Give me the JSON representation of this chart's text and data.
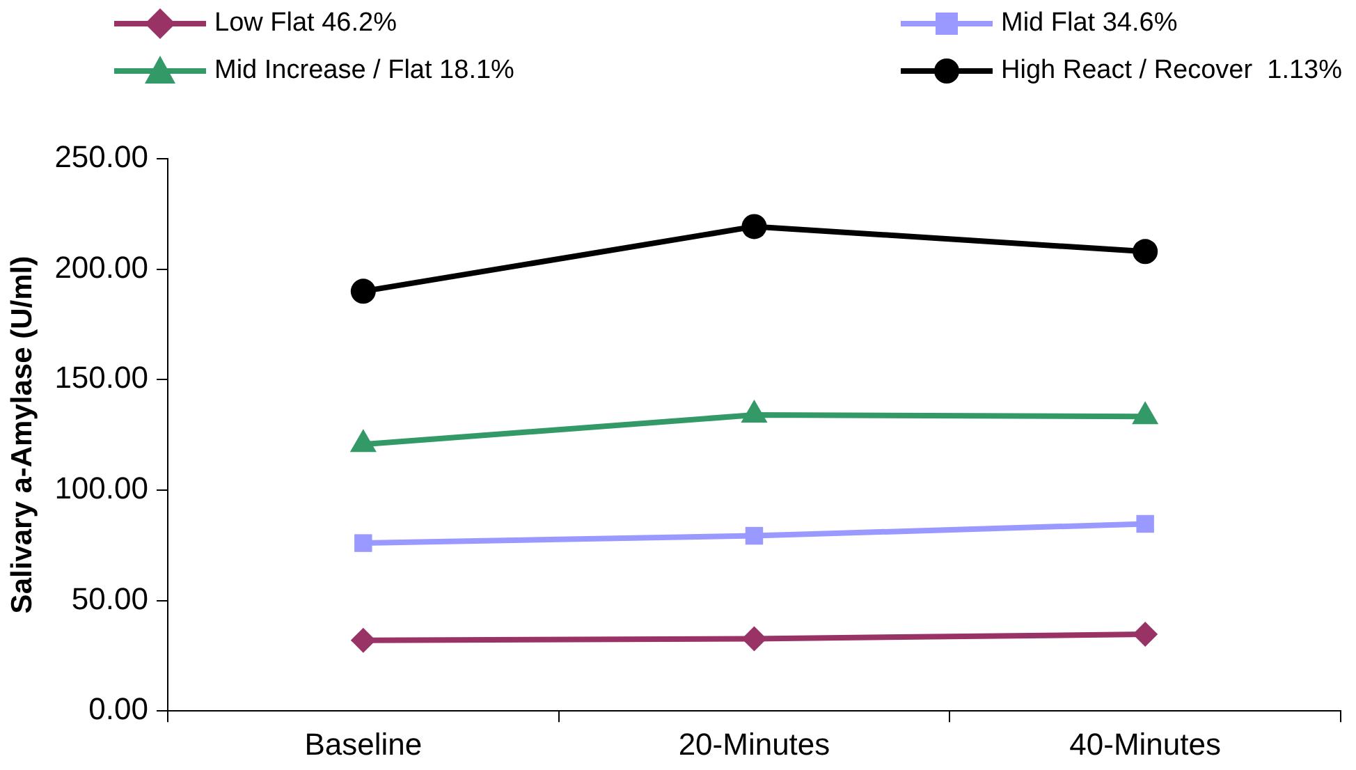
{
  "chart_data": {
    "type": "line",
    "ylabel": "Salivary a-Amylase (U/ml)",
    "categories": [
      "Baseline",
      "20-Minutes",
      "40-Minutes"
    ],
    "series": [
      {
        "name": "Low Flat 46.2%",
        "color": "#993366",
        "marker": "diamond",
        "values": [
          32,
          32.7,
          34.7
        ]
      },
      {
        "name": "Mid Flat 34.6%",
        "color": "#9999ff",
        "marker": "square",
        "values": [
          76,
          79.3,
          84.7
        ]
      },
      {
        "name": "Mid Increase / Flat 18.1%",
        "color": "#339966",
        "marker": "triangle",
        "values": [
          120.7,
          134,
          133.3
        ]
      },
      {
        "name": "High React / Recover  1.13%",
        "color": "#000000",
        "marker": "circle",
        "values": [
          190,
          219.3,
          208
        ]
      }
    ],
    "ylim": [
      0,
      250
    ],
    "yticks": [
      {
        "value": 0,
        "label": "0.00"
      },
      {
        "value": 50,
        "label": "50.00"
      },
      {
        "value": 100,
        "label": "100.00"
      },
      {
        "value": 150,
        "label": "150.00"
      },
      {
        "value": 200,
        "label": "200.00"
      },
      {
        "value": 250,
        "label": "250.00"
      }
    ],
    "grid": false,
    "legend": "top",
    "line_style": "solid"
  }
}
